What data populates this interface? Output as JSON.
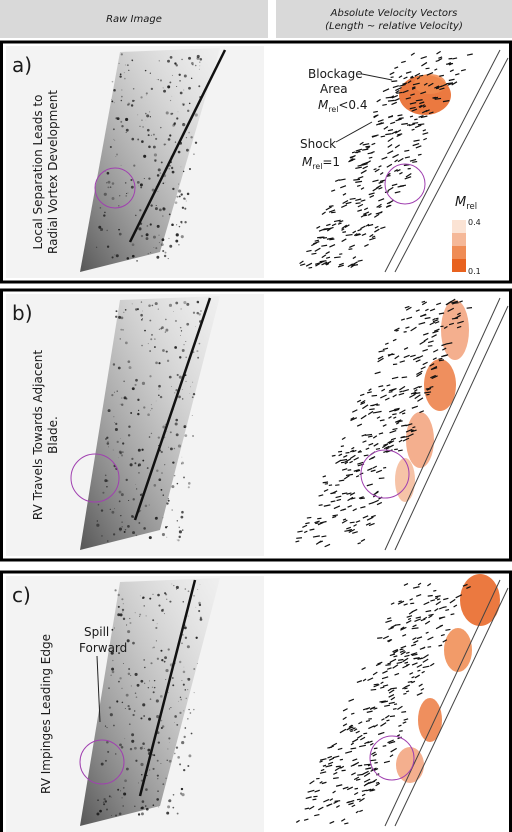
{
  "header": {
    "left": "Raw Image",
    "right": [
      "Absolute Velocity Vectors",
      "(Length ~ relative Velocity)"
    ]
  },
  "panels": [
    {
      "label": "a)",
      "caption": [
        "Local Separation Leads to",
        "Radial Vortex Development"
      ],
      "blockage": {
        "lines": [
          "Blockage",
          "Area"
        ],
        "symbol": "M",
        "subscript": "rel",
        "relation": "<0.4"
      },
      "shock": {
        "line": "Shock",
        "symbol": "M",
        "subscript": "rel",
        "relation": "=1"
      },
      "colorbar": {
        "symbol": "M",
        "subscript": "rel",
        "ticks": [
          0.4,
          0.1
        ]
      }
    },
    {
      "label": "b)",
      "caption": [
        "RV Travels Towards Adjacent",
        "Blade."
      ]
    },
    {
      "label": "c)",
      "caption": [
        "RV  Impinges  Leading Edge"
      ],
      "spill": [
        "Spill",
        "Forward"
      ]
    }
  ]
}
